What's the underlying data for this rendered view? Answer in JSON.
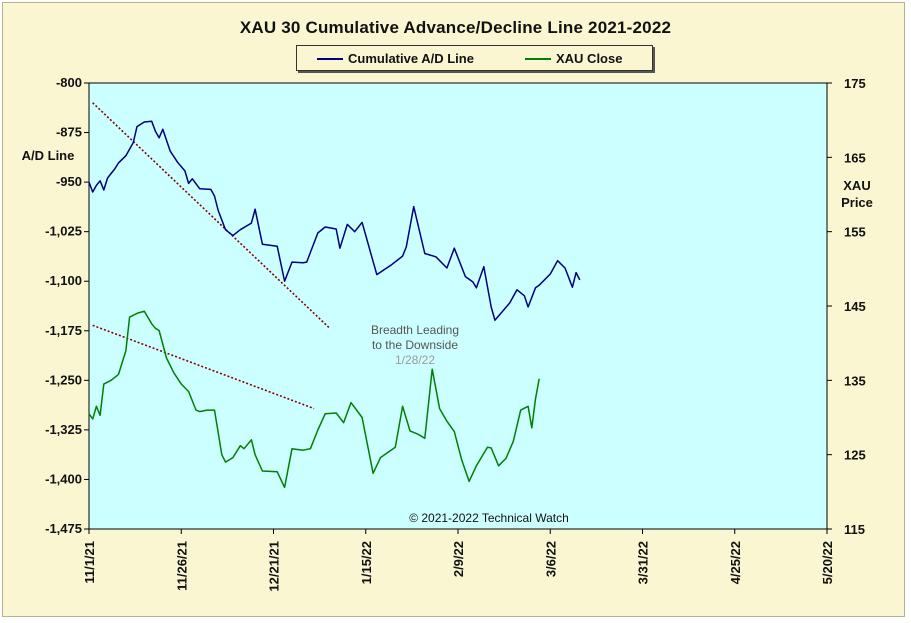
{
  "chart_data": {
    "type": "line",
    "title": "XAU 30 Cumulative  Advance/Decline  Line  2021-2022",
    "y_left_label": [
      "A/D Line"
    ],
    "y_right_label": [
      "XAU",
      "Price"
    ],
    "y_left_range": [
      -1475,
      -800
    ],
    "y_left_ticks": [
      -800,
      -875,
      -950,
      -1025,
      -1100,
      -1175,
      -1250,
      -1325,
      -1400,
      -1475
    ],
    "y_left_tick_labels": [
      "-800",
      "-875",
      "-950",
      "-1,025",
      "-1,100",
      "-1,175",
      "-1,250",
      "-1,325",
      "-1,400",
      "-1,475"
    ],
    "y_right_range": [
      115,
      175
    ],
    "y_right_ticks": [
      175,
      165,
      155,
      145,
      135,
      125,
      115
    ],
    "x_tick_labels": [
      "11/1/21",
      "11/26/21",
      "12/21/21",
      "1/15/22",
      "2/9/22",
      "3/6/22",
      "3/31/22",
      "4/25/22",
      "5/20/22"
    ],
    "legend": {
      "position": "top-center",
      "items": [
        {
          "label": "Cumulative A/D Line",
          "color": "#00007f"
        },
        {
          "label": "XAU Close",
          "color": "#007f00"
        }
      ]
    },
    "colors": {
      "plot_background": "#ccffff",
      "frame_background": "#fbf6d2",
      "trendline": "#8b0000"
    },
    "series": [
      {
        "name": "Cumulative A/D Line",
        "axis": "left",
        "color": "#00007f",
        "points": [
          [
            0,
            -950
          ],
          [
            1,
            -965
          ],
          [
            2,
            -955
          ],
          [
            3,
            -948
          ],
          [
            4,
            -962
          ],
          [
            5,
            -944
          ],
          [
            6,
            -937
          ],
          [
            7,
            -930
          ],
          [
            8,
            -921
          ],
          [
            10,
            -910
          ],
          [
            12,
            -890
          ],
          [
            13,
            -866
          ],
          [
            15,
            -859
          ],
          [
            17,
            -858
          ],
          [
            18,
            -873
          ],
          [
            19,
            -883
          ],
          [
            20,
            -870
          ],
          [
            22,
            -903
          ],
          [
            24,
            -920
          ],
          [
            26,
            -933
          ],
          [
            27,
            -952
          ],
          [
            28,
            -945
          ],
          [
            30,
            -960
          ],
          [
            33,
            -961
          ],
          [
            34,
            -971
          ],
          [
            35,
            -993
          ],
          [
            37,
            -1022
          ],
          [
            39,
            -1031
          ],
          [
            41,
            -1022
          ],
          [
            44,
            -1012
          ],
          [
            45,
            -991
          ],
          [
            47,
            -1044
          ],
          [
            51,
            -1047
          ],
          [
            53,
            -1100
          ],
          [
            55,
            -1071
          ],
          [
            58,
            -1072
          ],
          [
            59,
            -1071
          ],
          [
            62,
            -1027
          ],
          [
            64,
            -1018
          ],
          [
            67,
            -1021
          ],
          [
            68,
            -1050
          ],
          [
            70,
            -1014
          ],
          [
            72,
            -1025
          ],
          [
            74,
            -1011
          ],
          [
            78,
            -1090
          ],
          [
            82,
            -1075
          ],
          [
            85,
            -1062
          ],
          [
            86,
            -1048
          ],
          [
            88,
            -987
          ],
          [
            91,
            -1058
          ],
          [
            94,
            -1063
          ],
          [
            97,
            -1080
          ],
          [
            99,
            -1050
          ],
          [
            102,
            -1093
          ],
          [
            104,
            -1101
          ],
          [
            105,
            -1110
          ],
          [
            107,
            -1078
          ],
          [
            109,
            -1139
          ],
          [
            110,
            -1159
          ],
          [
            112,
            -1146
          ],
          [
            114,
            -1133
          ],
          [
            116,
            -1113
          ],
          [
            118,
            -1122
          ],
          [
            119,
            -1139
          ],
          [
            121,
            -1110
          ],
          [
            122,
            -1106
          ],
          [
            125,
            -1089
          ],
          [
            127,
            -1069
          ],
          [
            129,
            -1080
          ],
          [
            131,
            -1109
          ],
          [
            132,
            -1087
          ],
          [
            133,
            -1098
          ]
        ]
      },
      {
        "name": "XAU Close",
        "axis": "right",
        "color": "#007f00",
        "points": [
          [
            0,
            130.5
          ],
          [
            1,
            129.8
          ],
          [
            2,
            131.5
          ],
          [
            3,
            130.3
          ],
          [
            4,
            134.5
          ],
          [
            6,
            135.0
          ],
          [
            8,
            135.8
          ],
          [
            10,
            139.0
          ],
          [
            11,
            143.5
          ],
          [
            13,
            144.0
          ],
          [
            15,
            144.3
          ],
          [
            17,
            142.6
          ],
          [
            18,
            142.0
          ],
          [
            19,
            141.7
          ],
          [
            21,
            138.0
          ],
          [
            23,
            136.0
          ],
          [
            25,
            134.5
          ],
          [
            27,
            133.5
          ],
          [
            29,
            131.0
          ],
          [
            30,
            130.8
          ],
          [
            32,
            131.0
          ],
          [
            34,
            131.0
          ],
          [
            36,
            125.0
          ],
          [
            37,
            124.0
          ],
          [
            39,
            124.6
          ],
          [
            41,
            126.2
          ],
          [
            42,
            125.8
          ],
          [
            44,
            127.0
          ],
          [
            45,
            125.0
          ],
          [
            47,
            122.8
          ],
          [
            51,
            122.7
          ],
          [
            53,
            120.6
          ],
          [
            55,
            125.8
          ],
          [
            58,
            125.6
          ],
          [
            60,
            125.8
          ],
          [
            62,
            128.3
          ],
          [
            64,
            130.5
          ],
          [
            67,
            130.6
          ],
          [
            69,
            129.3
          ],
          [
            71,
            132.0
          ],
          [
            74,
            130.0
          ],
          [
            77,
            122.5
          ],
          [
            79,
            124.6
          ],
          [
            81,
            125.3
          ],
          [
            83,
            126.0
          ],
          [
            85,
            131.5
          ],
          [
            87,
            128.2
          ],
          [
            89,
            127.8
          ],
          [
            91,
            127.2
          ],
          [
            93,
            136.5
          ],
          [
            95,
            131.2
          ],
          [
            97,
            129.5
          ],
          [
            99,
            128.1
          ],
          [
            101,
            124.3
          ],
          [
            103,
            121.4
          ],
          [
            105,
            123.5
          ],
          [
            108,
            126.0
          ],
          [
            109,
            125.9
          ],
          [
            111,
            123.5
          ],
          [
            113,
            124.5
          ],
          [
            115,
            126.8
          ],
          [
            117,
            131.0
          ],
          [
            119,
            131.5
          ],
          [
            120,
            128.6
          ],
          [
            121,
            132.5
          ],
          [
            122,
            135.2
          ]
        ]
      }
    ],
    "trendlines": [
      {
        "axis": "left",
        "from": [
          1,
          -830
        ],
        "to": [
          65,
          -1170
        ],
        "style": "dotted"
      },
      {
        "axis": "right",
        "from": [
          1,
          142.4
        ],
        "to": [
          61,
          131.2
        ],
        "style": "dotted"
      }
    ],
    "annotations": {
      "note_line1": "Breadth Leading",
      "note_line2": "to the Downside",
      "note_date": "1/28/22",
      "copyright": "© 2021-2022  Technical  Watch"
    }
  }
}
